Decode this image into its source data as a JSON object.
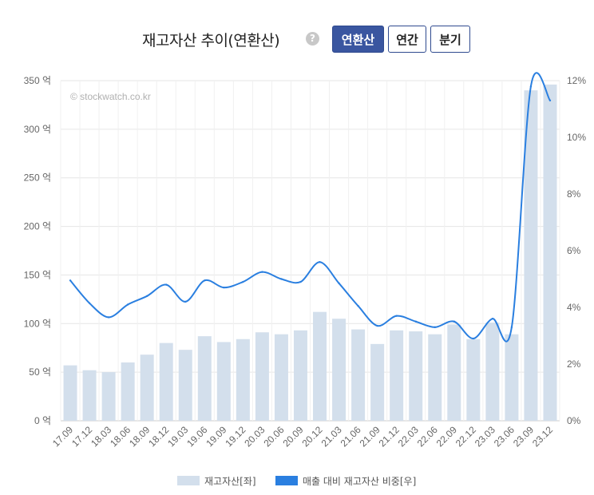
{
  "header": {
    "title": "재고자산 추이(연환산)",
    "help_icon": "?",
    "buttons": [
      {
        "label": "연환산",
        "active": true
      },
      {
        "label": "연간",
        "active": false
      },
      {
        "label": "분기",
        "active": false
      }
    ]
  },
  "watermark": "© stockwatch.co.kr",
  "colors": {
    "bar": "#d3dfec",
    "line": "#2a7fe0",
    "grid": "#e6e6e6",
    "button_active": "#3a56a0"
  },
  "chart_data": {
    "type": "bar",
    "categories": [
      "17.09",
      "17.12",
      "18.03",
      "18.06",
      "18.09",
      "18.12",
      "19.03",
      "19.06",
      "19.09",
      "19.12",
      "20.03",
      "20.06",
      "20.09",
      "20.12",
      "21.03",
      "21.06",
      "21.09",
      "21.12",
      "22.03",
      "22.06",
      "22.09",
      "22.12",
      "23.03",
      "23.06",
      "23.09",
      "23.12"
    ],
    "y_left": {
      "ticks": [
        "0 억",
        "50 억",
        "100 억",
        "150 억",
        "200 억",
        "250 억",
        "300 억",
        "350 억"
      ],
      "ylim": [
        0,
        350
      ]
    },
    "y_right": {
      "ticks": [
        "0%",
        "2%",
        "4%",
        "6%",
        "8%",
        "10%",
        "12%"
      ],
      "ylim": [
        0,
        12
      ]
    },
    "series": [
      {
        "name": "재고자산[좌]",
        "type": "bar",
        "axis": "left",
        "values": [
          57,
          52,
          50,
          60,
          68,
          80,
          73,
          87,
          81,
          84,
          91,
          89,
          93,
          112,
          105,
          94,
          79,
          93,
          92,
          89,
          99,
          84,
          101,
          89,
          340,
          346
        ]
      },
      {
        "name": "매출 대비 재고자산 비중[우]",
        "type": "line",
        "axis": "right",
        "values": [
          4.95,
          4.15,
          3.65,
          4.1,
          4.4,
          4.8,
          4.2,
          4.95,
          4.7,
          4.9,
          5.25,
          5.0,
          4.9,
          5.6,
          4.85,
          4.05,
          3.35,
          3.7,
          3.5,
          3.3,
          3.5,
          2.9,
          3.6,
          3.3,
          11.8,
          11.3
        ]
      }
    ],
    "grid": true,
    "legend": "bottom"
  }
}
